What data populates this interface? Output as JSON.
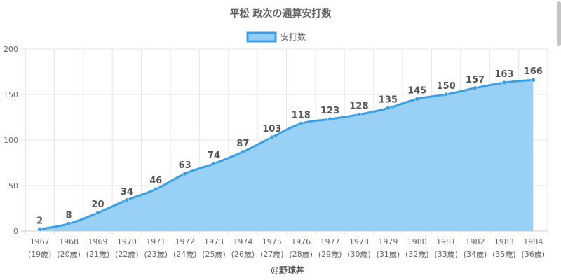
{
  "chart_data": {
    "type": "area",
    "title": "平松 政次の通算安打数",
    "legend": {
      "label": "安打数",
      "position": "top"
    },
    "categories": [
      "1967",
      "1968",
      "1969",
      "1970",
      "1971",
      "1972",
      "1973",
      "1974",
      "1975",
      "1976",
      "1977",
      "1978",
      "1979",
      "1980",
      "1981",
      "1982",
      "1983",
      "1984"
    ],
    "ages": [
      "(19歳)",
      "(20歳)",
      "(21歳)",
      "(22歳)",
      "(23歳)",
      "(24歳)",
      "(25歳)",
      "(26歳)",
      "(27歳)",
      "(28歳)",
      "(29歳)",
      "(30歳)",
      "(31歳)",
      "(32歳)",
      "(33歳)",
      "(34歳)",
      "(35歳)",
      "(36歳)"
    ],
    "series": [
      {
        "name": "安打数",
        "values": [
          2,
          8,
          20,
          34,
          46,
          63,
          74,
          87,
          103,
          118,
          123,
          128,
          135,
          145,
          150,
          157,
          163,
          166
        ]
      }
    ],
    "ylim": [
      0,
      200
    ],
    "yticks": [
      0,
      50,
      100,
      150,
      200
    ],
    "grid": true,
    "colors": {
      "line": "#3a9fe6",
      "fill": "#94cdf5",
      "grid": "#e6e6e6"
    }
  },
  "credit": "@野球丼"
}
